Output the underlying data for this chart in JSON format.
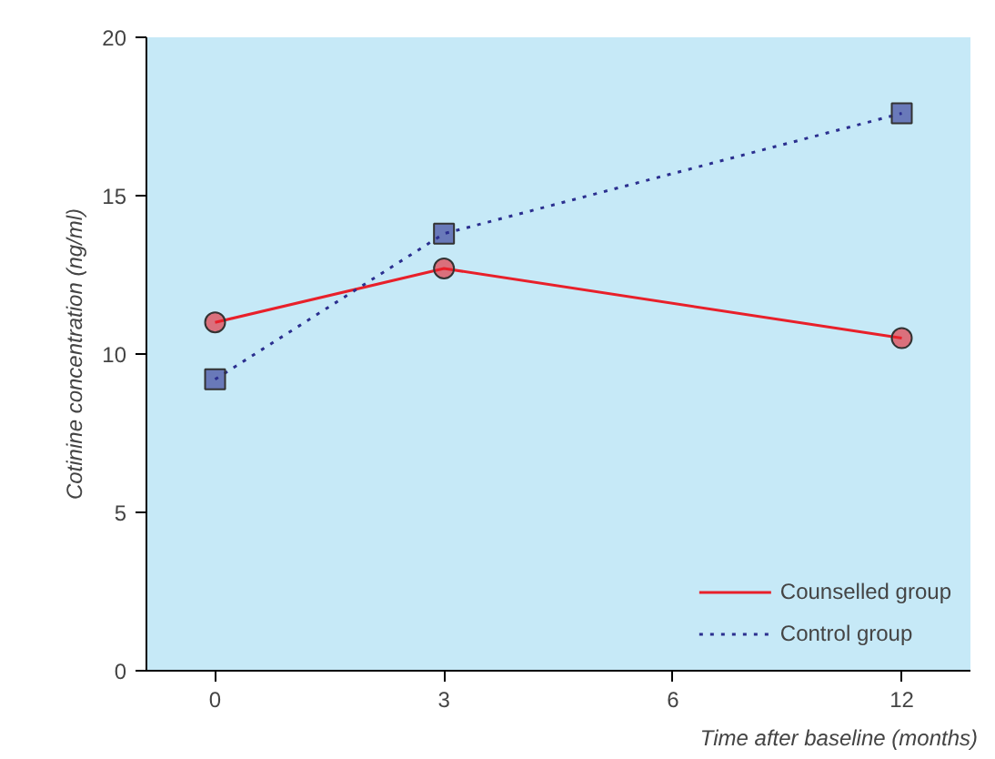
{
  "chart_data": {
    "type": "line",
    "ylabel": "Cotinine concentration (ng/ml)",
    "xlabel": "Time after baseline (months)",
    "categories": [
      "0",
      "3",
      "6",
      "12"
    ],
    "ylim": [
      0,
      20
    ],
    "yticks": [
      0,
      5,
      10,
      15,
      20
    ],
    "grid": false,
    "legend": "bottom right",
    "series": [
      {
        "name": "Counselled group",
        "color": "#e8202a",
        "marker": "circle",
        "line_style": "solid",
        "values": [
          11.0,
          12.7,
          null,
          10.5
        ]
      },
      {
        "name": "Control group",
        "color": "#2b2f8f",
        "marker": "square",
        "line_style": "dotted",
        "values": [
          9.2,
          13.8,
          null,
          17.6
        ]
      }
    ]
  }
}
